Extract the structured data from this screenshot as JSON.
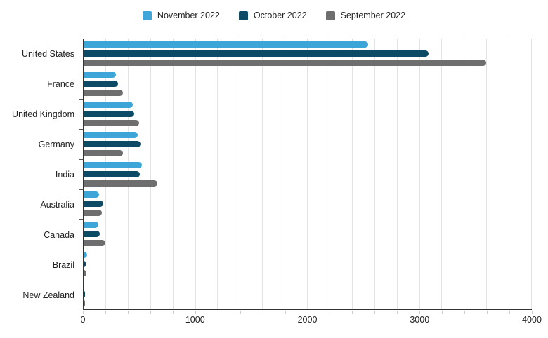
{
  "chart_data": {
    "type": "bar",
    "orientation": "horizontal",
    "title": "",
    "categories": [
      "United States",
      "France",
      "United Kingdom",
      "Germany",
      "India",
      "Australia",
      "Canada",
      "Brazil",
      "New Zealand"
    ],
    "series": [
      {
        "name": "November 2022",
        "color": "#3EA5D9",
        "values": [
          2540,
          290,
          440,
          480,
          520,
          135,
          130,
          30,
          8
        ]
      },
      {
        "name": "October 2022",
        "color": "#0C4A66",
        "values": [
          3080,
          305,
          450,
          510,
          500,
          175,
          145,
          20,
          15
        ]
      },
      {
        "name": "September 2022",
        "color": "#6E6E6E",
        "values": [
          3590,
          350,
          495,
          350,
          660,
          165,
          195,
          25,
          10
        ]
      }
    ],
    "xlim": [
      0,
      4000
    ],
    "x_tick_values": [
      0,
      1000,
      2000,
      3000,
      4000
    ],
    "x_tick_labels": [
      "0",
      "1000",
      "2000",
      "3000",
      "4000"
    ],
    "minor_grid_step": 200,
    "grid": true,
    "legend_position": "top"
  },
  "style": {
    "grid_color": "#e3e3e3",
    "axis_color": "#333333",
    "tick_color": "#cfcfcf",
    "label_color": "#222222",
    "background": "#ffffff"
  }
}
